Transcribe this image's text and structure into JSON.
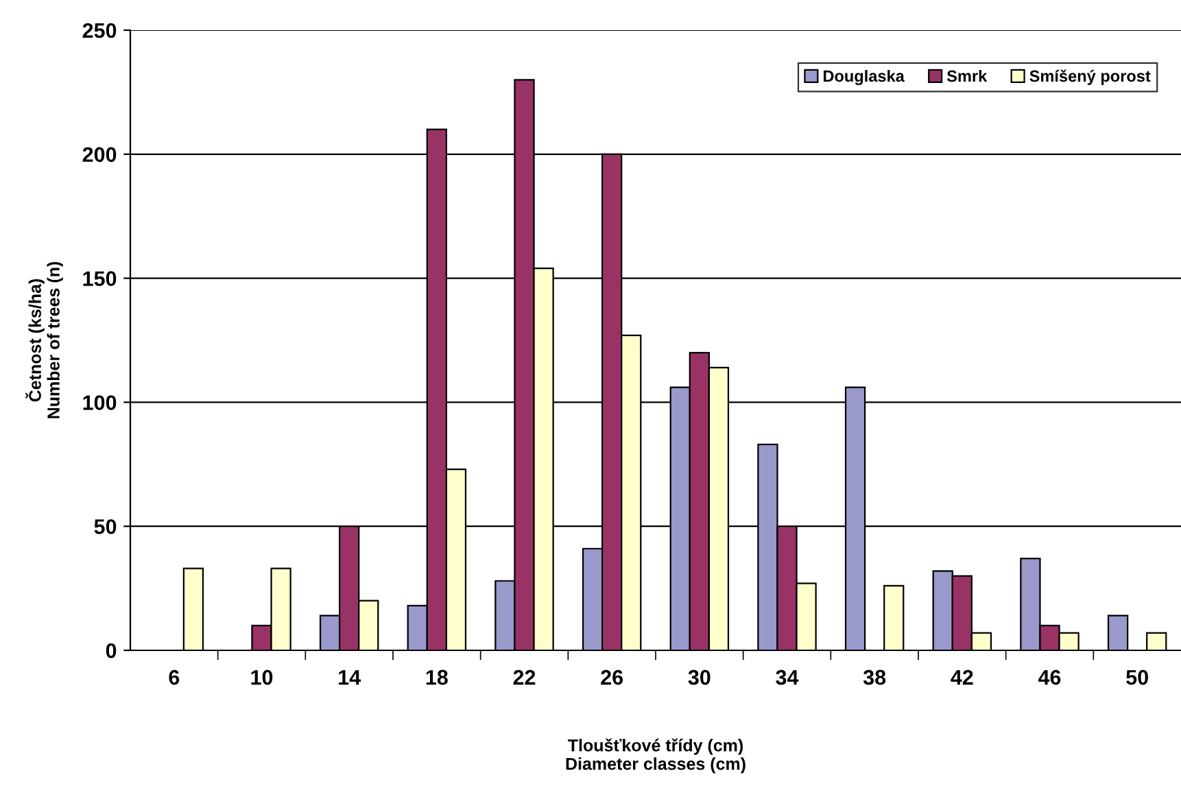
{
  "chart_data": {
    "type": "bar",
    "xlabel": "Tloušťkové třídy (cm)\nDiameter classes (cm)",
    "ylabel": "Četnost (ks/ha)\nNumber of trees (n)",
    "categories": [
      "6",
      "10",
      "14",
      "18",
      "22",
      "26",
      "30",
      "34",
      "38",
      "42",
      "46",
      "50"
    ],
    "series": [
      {
        "name": "Douglaska",
        "color": "#9999cc",
        "values": [
          null,
          null,
          14,
          18,
          28,
          41,
          106,
          83,
          106,
          32,
          37,
          14
        ]
      },
      {
        "name": "Smrk",
        "color": "#993366",
        "values": [
          null,
          10,
          50,
          210,
          230,
          200,
          120,
          50,
          null,
          30,
          10,
          null
        ]
      },
      {
        "name": "Smíšený porost",
        "color": "#ffffcc",
        "values": [
          33,
          33,
          20,
          73,
          154,
          127,
          114,
          27,
          26,
          7,
          7,
          7
        ]
      }
    ],
    "ylim": [
      0,
      250
    ],
    "yticks": [
      0,
      50,
      100,
      150,
      200,
      250
    ],
    "grid": "y",
    "legend": "top right"
  }
}
